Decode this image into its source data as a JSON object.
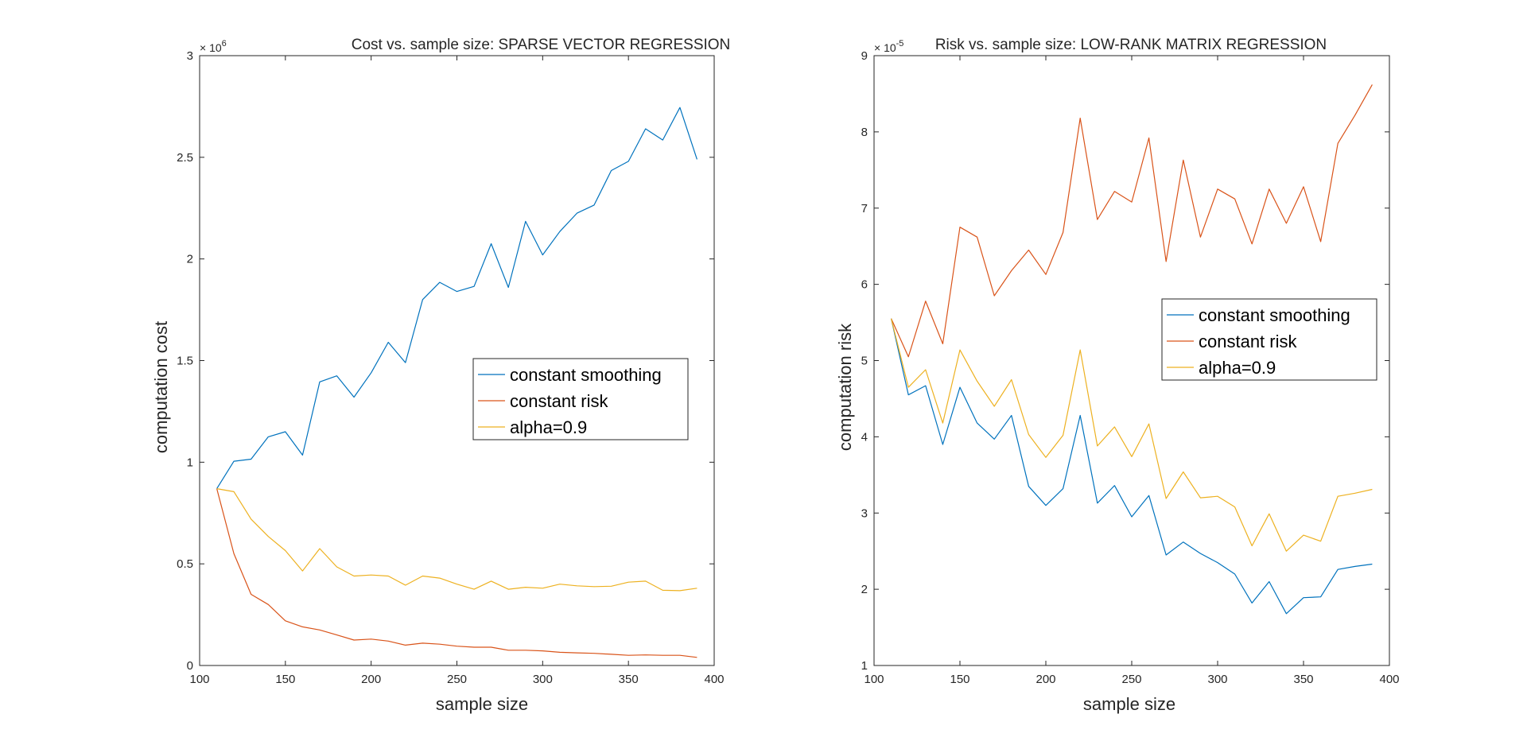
{
  "figure": {
    "background": "#ffffff",
    "axis_color": "#262626"
  },
  "chart_data": [
    {
      "type": "line",
      "title": "Cost vs. sample size: SPARSE VECTOR REGRESSION",
      "xlabel": "sample size",
      "ylabel": "computation cost",
      "xlim": [
        100,
        400
      ],
      "ylim": [
        0,
        3000000
      ],
      "y_exponent_label": "× 10",
      "y_exponent_power": "6",
      "xticks": [
        100,
        150,
        200,
        250,
        300,
        350,
        400
      ],
      "xtick_labels": [
        "100",
        "150",
        "200",
        "250",
        "300",
        "350",
        "400"
      ],
      "yticks": [
        0,
        500000,
        1000000,
        1500000,
        2000000,
        2500000,
        3000000
      ],
      "ytick_labels": [
        "0",
        "0.5",
        "1",
        "1.5",
        "2",
        "2.5",
        "3"
      ],
      "grid": false,
      "legend_position": "middle-right",
      "x": [
        110,
        120,
        130,
        140,
        150,
        160,
        170,
        180,
        190,
        200,
        210,
        220,
        230,
        240,
        250,
        260,
        270,
        280,
        290,
        300,
        310,
        320,
        330,
        340,
        350,
        360,
        370,
        380,
        390
      ],
      "series": [
        {
          "name": "constant smoothing",
          "color": "#0072BD",
          "values": [
            870000,
            1005000,
            1015000,
            1125000,
            1150000,
            1035000,
            1395000,
            1425000,
            1320000,
            1440000,
            1590000,
            1490000,
            1800000,
            1885000,
            1840000,
            1865000,
            2075000,
            1860000,
            2185000,
            2020000,
            2135000,
            2225000,
            2265000,
            2435000,
            2480000,
            2640000,
            2585000,
            2745000,
            2490000
          ]
        },
        {
          "name": "constant risk",
          "color": "#D95319",
          "values": [
            870000,
            550000,
            350000,
            300000,
            220000,
            190000,
            175000,
            150000,
            125000,
            130000,
            120000,
            100000,
            110000,
            105000,
            95000,
            90000,
            90000,
            75000,
            75000,
            72000,
            65000,
            62000,
            60000,
            55000,
            50000,
            52000,
            50000,
            50000,
            40000
          ]
        },
        {
          "name": "alpha=0.9",
          "color": "#EDB120",
          "values": [
            870000,
            855000,
            720000,
            635000,
            565000,
            465000,
            575000,
            485000,
            440000,
            445000,
            440000,
            395000,
            440000,
            430000,
            400000,
            375000,
            415000,
            375000,
            385000,
            380000,
            400000,
            392000,
            388000,
            390000,
            410000,
            415000,
            370000,
            368000,
            380000
          ]
        }
      ]
    },
    {
      "type": "line",
      "title": "Risk vs. sample size: LOW-RANK MATRIX REGRESSION",
      "xlabel": "sample size",
      "ylabel": "computation risk",
      "xlim": [
        100,
        400
      ],
      "ylim": [
        1,
        9
      ],
      "y_exponent_label": "× 10",
      "y_exponent_power": "-5",
      "xticks": [
        100,
        150,
        200,
        250,
        300,
        350,
        400
      ],
      "xtick_labels": [
        "100",
        "150",
        "200",
        "250",
        "300",
        "350",
        "400"
      ],
      "yticks": [
        1,
        2,
        3,
        4,
        5,
        6,
        7,
        8,
        9
      ],
      "ytick_labels": [
        "1",
        "2",
        "3",
        "4",
        "5",
        "6",
        "7",
        "8",
        "9"
      ],
      "grid": false,
      "legend_position": "middle-right",
      "x": [
        110,
        120,
        130,
        140,
        150,
        160,
        170,
        180,
        190,
        200,
        210,
        220,
        230,
        240,
        250,
        260,
        270,
        280,
        290,
        300,
        310,
        320,
        330,
        340,
        350,
        360,
        370,
        380,
        390
      ],
      "series": [
        {
          "name": "constant smoothing",
          "color": "#0072BD",
          "values": [
            5.55,
            4.55,
            4.67,
            3.9,
            4.65,
            4.18,
            3.97,
            4.28,
            3.35,
            3.1,
            3.32,
            4.28,
            3.13,
            3.36,
            2.95,
            3.23,
            2.45,
            2.62,
            2.47,
            2.35,
            2.2,
            1.82,
            2.1,
            1.68,
            1.89,
            1.9,
            2.26,
            2.3,
            2.33
          ]
        },
        {
          "name": "constant risk",
          "color": "#D95319",
          "values": [
            5.55,
            5.05,
            5.78,
            5.22,
            6.75,
            6.62,
            5.85,
            6.18,
            6.45,
            6.13,
            6.68,
            8.18,
            6.85,
            7.22,
            7.08,
            7.92,
            6.3,
            7.63,
            6.62,
            7.25,
            7.12,
            6.53,
            7.25,
            6.8,
            7.28,
            6.56,
            7.85,
            8.22,
            8.62
          ]
        },
        {
          "name": "alpha=0.9",
          "color": "#EDB120",
          "values": [
            5.55,
            4.65,
            4.88,
            4.18,
            5.14,
            4.73,
            4.4,
            4.75,
            4.03,
            3.73,
            4.02,
            5.14,
            3.88,
            4.13,
            3.74,
            4.17,
            3.19,
            3.54,
            3.2,
            3.22,
            3.08,
            2.57,
            2.99,
            2.5,
            2.71,
            2.63,
            3.22,
            3.26,
            3.31
          ]
        }
      ]
    }
  ]
}
